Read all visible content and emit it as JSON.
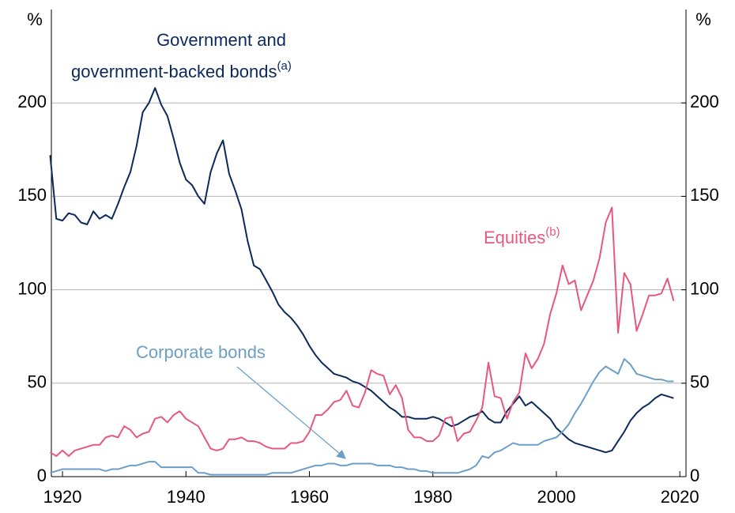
{
  "chart_data": {
    "type": "line",
    "y_unit": "%",
    "y2_unit": "%",
    "x": [
      1918,
      1919,
      1920,
      1921,
      1922,
      1923,
      1924,
      1925,
      1926,
      1927,
      1928,
      1929,
      1930,
      1931,
      1932,
      1933,
      1934,
      1935,
      1936,
      1937,
      1938,
      1939,
      1940,
      1941,
      1942,
      1943,
      1944,
      1945,
      1946,
      1947,
      1948,
      1949,
      1950,
      1951,
      1952,
      1953,
      1954,
      1955,
      1956,
      1957,
      1958,
      1959,
      1960,
      1961,
      1962,
      1963,
      1964,
      1965,
      1966,
      1967,
      1968,
      1969,
      1970,
      1971,
      1972,
      1973,
      1974,
      1975,
      1976,
      1977,
      1978,
      1979,
      1980,
      1981,
      1982,
      1983,
      1984,
      1985,
      1986,
      1987,
      1988,
      1989,
      1990,
      1991,
      1992,
      1993,
      1994,
      1995,
      1996,
      1997,
      1998,
      1999,
      2000,
      2001,
      2002,
      2003,
      2004,
      2005,
      2006,
      2007,
      2008,
      2009,
      2010,
      2011,
      2012,
      2013,
      2014,
      2015,
      2016,
      2017,
      2018,
      2019
    ],
    "xlim": [
      1918.2,
      2021
    ],
    "xticks": [
      1920,
      1940,
      1960,
      1980,
      2000,
      2020
    ],
    "ylim": [
      0,
      250
    ],
    "yticks": [
      0,
      50,
      100,
      150,
      200
    ],
    "y2lim": [
      0,
      250
    ],
    "y2ticks": [
      0,
      50,
      100,
      150,
      200
    ],
    "grid": true,
    "series": [
      {
        "name": [
          "Government and",
          "government-backed bonds"
        ],
        "note": "(a)",
        "color": "#0b2a5b",
        "values": [
          172,
          138,
          137,
          141,
          140,
          136,
          135,
          142,
          138,
          140,
          138,
          146,
          155,
          163,
          177,
          195,
          200,
          208,
          199,
          193,
          181,
          168,
          159,
          156,
          150,
          146,
          163,
          173,
          180,
          162,
          153,
          143,
          126,
          113,
          111,
          105,
          99,
          92,
          88,
          85,
          81,
          76,
          70,
          65,
          61,
          58,
          55,
          54,
          53,
          51,
          50,
          48,
          46,
          43,
          40,
          37,
          35,
          32,
          32,
          31,
          31,
          31,
          32,
          31,
          29,
          27,
          28,
          30,
          32,
          33,
          35,
          31,
          29,
          29,
          35,
          39,
          43,
          38,
          40,
          37,
          34,
          31,
          26,
          23,
          20,
          18,
          17,
          16,
          15,
          14,
          13,
          14,
          19,
          24,
          30,
          34,
          37,
          39,
          42,
          44,
          43,
          42
        ]
      },
      {
        "name": "Equities",
        "note": "(b)",
        "color": "#e8587c",
        "values": [
          13,
          11,
          14,
          11,
          14,
          15,
          16,
          17,
          17,
          21,
          22,
          21,
          27,
          25,
          21,
          23,
          24,
          31,
          32,
          29,
          33,
          35,
          31,
          29,
          27,
          21,
          15,
          14,
          15,
          20,
          20,
          21,
          19,
          19,
          18,
          16,
          15,
          15,
          15,
          18,
          18,
          19,
          24,
          33,
          33,
          36,
          40,
          41,
          46,
          38,
          37,
          45,
          57,
          55,
          54,
          44,
          49,
          42,
          25,
          21,
          21,
          19,
          19,
          22,
          31,
          32,
          19,
          23,
          24,
          30,
          37,
          61,
          43,
          42,
          31,
          40,
          45,
          66,
          58,
          63,
          71,
          87,
          98,
          113,
          103,
          105,
          89,
          97,
          105,
          117,
          136,
          144,
          77,
          109,
          103,
          78,
          87,
          97,
          97,
          98,
          106,
          94
        ]
      },
      {
        "name": "Corporate bonds",
        "color": "#6b9fca",
        "values": [
          2,
          3,
          4,
          4,
          4,
          4,
          4,
          4,
          4,
          3,
          4,
          4,
          5,
          6,
          6,
          7,
          8,
          8,
          5,
          5,
          5,
          5,
          5,
          5,
          2,
          2,
          1,
          1,
          1,
          1,
          1,
          1,
          1,
          1,
          1,
          1,
          2,
          2,
          2,
          2,
          3,
          4,
          5,
          6,
          6,
          7,
          7,
          6,
          6,
          7,
          7,
          7,
          7,
          6,
          6,
          6,
          5,
          5,
          4,
          4,
          3,
          3,
          2,
          2,
          2,
          2,
          2,
          3,
          4,
          6,
          11,
          10,
          13,
          14,
          16,
          18,
          17,
          17,
          17,
          17,
          19,
          20,
          21,
          24,
          28,
          34,
          39,
          45,
          51,
          56,
          59,
          57,
          55,
          63,
          60,
          55,
          54,
          53,
          52,
          52,
          51,
          51
        ]
      }
    ]
  }
}
